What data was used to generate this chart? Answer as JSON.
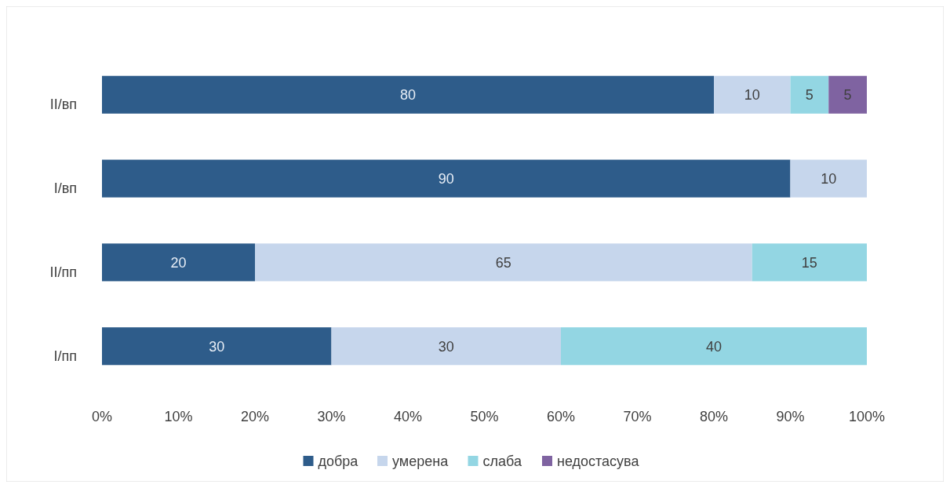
{
  "chart_data": {
    "type": "bar",
    "orientation": "horizontal",
    "stacked": true,
    "categories": [
      "II/вп",
      "I/вп",
      "II/пп",
      "I/пп"
    ],
    "series": [
      {
        "name": "добра",
        "color": "#2e5c8a",
        "values": [
          80,
          90,
          20,
          30
        ]
      },
      {
        "name": "умерена",
        "color": "#c6d6ec",
        "values": [
          10,
          10,
          65,
          30
        ]
      },
      {
        "name": "слаба",
        "color": "#93d6e3",
        "values": [
          5,
          null,
          15,
          40
        ]
      },
      {
        "name": "недостасува",
        "color": "#7f63a1",
        "values": [
          5,
          null,
          null,
          null
        ]
      }
    ],
    "xlim": [
      0,
      100
    ],
    "xticks": [
      {
        "value": 0,
        "label": "0%"
      },
      {
        "value": 10,
        "label": "10%"
      },
      {
        "value": 20,
        "label": "20%"
      },
      {
        "value": 30,
        "label": "30%"
      },
      {
        "value": 40,
        "label": "40%"
      },
      {
        "value": 50,
        "label": "50%"
      },
      {
        "value": 60,
        "label": "60%"
      },
      {
        "value": 70,
        "label": "70%"
      },
      {
        "value": 80,
        "label": "80%"
      },
      {
        "value": 90,
        "label": "90%"
      },
      {
        "value": 100,
        "label": "100%"
      }
    ],
    "data_labels": true,
    "legend": "bottom",
    "grid": false
  }
}
